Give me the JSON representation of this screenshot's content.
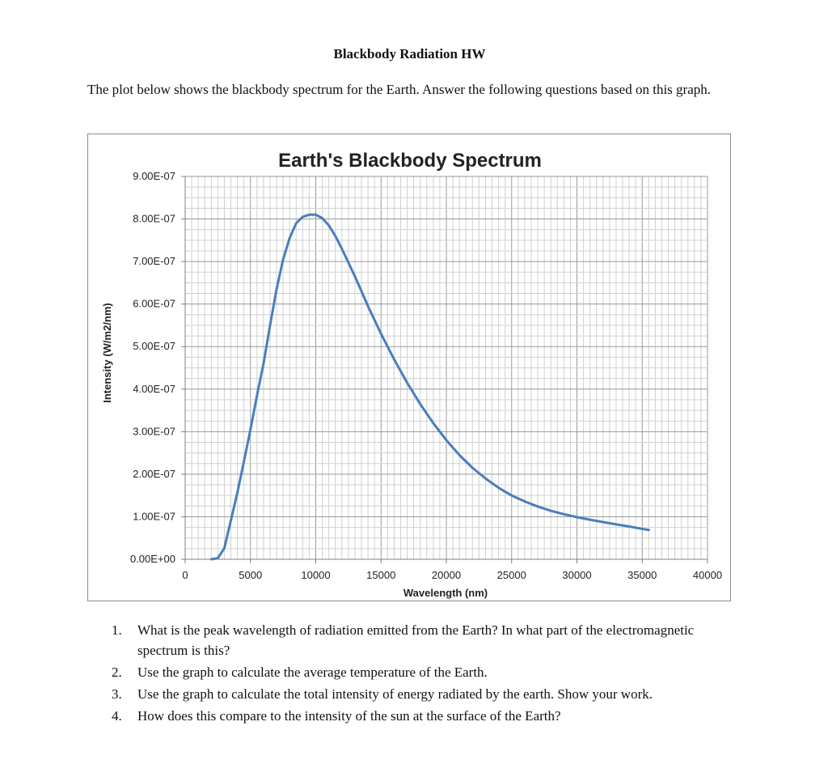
{
  "document": {
    "title": "Blackbody Radiation HW",
    "intro": "The plot below shows the blackbody spectrum for the Earth. Answer the following questions based on this graph."
  },
  "chart_data": {
    "type": "line",
    "title": "Earth's Blackbody Spectrum",
    "xlabel": "Wavelength (nm)",
    "ylabel": "Intensity (W/m2/nm)",
    "xlim": [
      0,
      40000
    ],
    "ylim": [
      0,
      9e-07
    ],
    "x_ticks": [
      "0",
      "5000",
      "10000",
      "15000",
      "20000",
      "25000",
      "30000",
      "35000",
      "40000"
    ],
    "y_ticks": [
      "0.00E+00",
      "1.00E-07",
      "2.00E-07",
      "3.00E-07",
      "4.00E-07",
      "5.00E-07",
      "6.00E-07",
      "7.00E-07",
      "8.00E-07",
      "9.00E-07"
    ],
    "grid": true,
    "line_color": "#4a7ebb",
    "series": [
      {
        "x": [
          2000,
          2500,
          3000,
          3500,
          4000,
          4500,
          5000,
          5500,
          6000,
          6500,
          7000,
          7500,
          8000,
          8500,
          9000,
          9500,
          10000,
          10500,
          11000,
          11500,
          12000,
          13000,
          14000,
          15000,
          16000,
          17000,
          18000,
          19000,
          20000,
          21000,
          22000,
          23000,
          24000,
          25000,
          26000,
          27000,
          28000,
          29000,
          30000,
          31000,
          32000,
          33000,
          34000,
          35000,
          35500
        ],
        "y": [
          4.4e-11,
          2.62e-09,
          2.61e-08,
          9.13e-08,
          1.57e-07,
          2.3e-07,
          3.05e-07,
          3.85e-07,
          4.6e-07,
          5.5e-07,
          6.35e-07,
          7.05e-07,
          7.55e-07,
          7.9e-07,
          8.05e-07,
          8.1e-07,
          8.1e-07,
          8.02e-07,
          7.85e-07,
          7.6e-07,
          7.3e-07,
          6.65e-07,
          5.95e-07,
          5.3e-07,
          4.7e-07,
          4.15e-07,
          3.65e-07,
          3.2e-07,
          2.8e-07,
          2.45e-07,
          2.15e-07,
          1.9e-07,
          1.68e-07,
          1.5e-07,
          1.36e-07,
          1.24e-07,
          1.14e-07,
          1.06e-07,
          9.9e-08,
          9.3e-08,
          8.75e-08,
          8.2e-08,
          7.7e-08,
          7.15e-08,
          6.9e-08
        ]
      }
    ]
  },
  "questions": [
    {
      "num": "1.",
      "text": "What is the peak wavelength of radiation emitted from the Earth? In what part of the electromagnetic spectrum is this?"
    },
    {
      "num": "2.",
      "text": "Use the graph to calculate the average temperature of the Earth."
    },
    {
      "num": "3.",
      "text": "Use the graph to calculate the total intensity of energy radiated by the earth. Show your work."
    },
    {
      "num": "4.",
      "text": "How does this compare to the intensity of the sun at the surface of the Earth?"
    }
  ]
}
